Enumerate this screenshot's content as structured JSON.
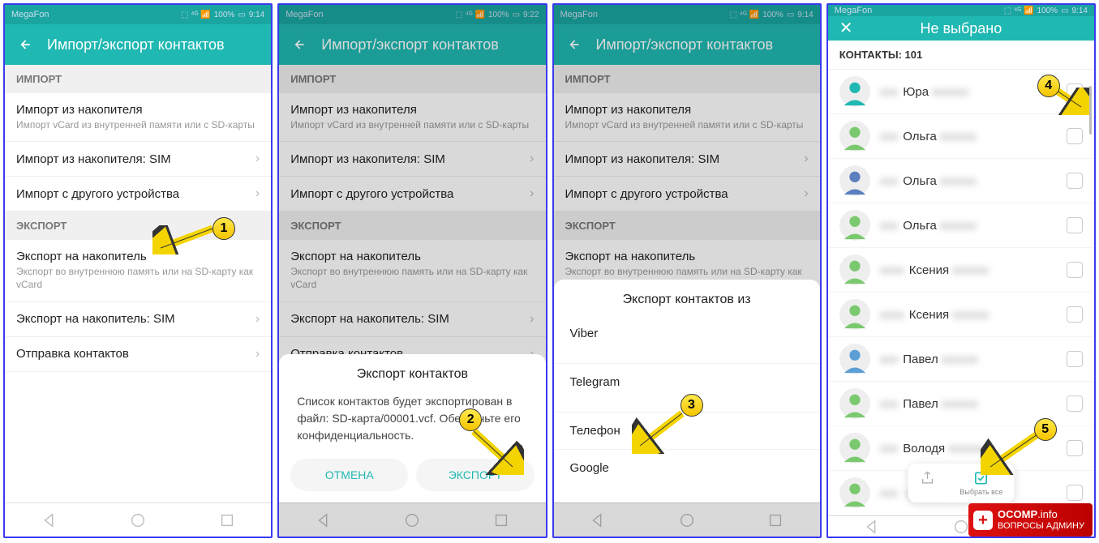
{
  "status": {
    "carrier": "MegaFon",
    "battery": "100%",
    "t1": "9:14",
    "t2": "9:22",
    "signal": "📶"
  },
  "header": {
    "title": "Импорт/экспорт контактов",
    "title4": "Не выбрано"
  },
  "sections": {
    "import": "ИМПОРТ",
    "export": "ЭКСПОРТ"
  },
  "items": {
    "imp1_t": "Импорт из накопителя",
    "imp1_s": "Импорт vCard из внутренней памяти или с SD-карты",
    "imp2_t": "Импорт из накопителя: SIM",
    "imp3_t": "Импорт с другого устройства",
    "exp1_t": "Экспорт на накопитель",
    "exp1_s": "Экспорт во внутреннюю память или на SD-карту как vCard",
    "exp2_t": "Экспорт на накопитель: SIM",
    "exp3_t": "Отправка контактов"
  },
  "dialog1": {
    "title": "Экспорт контактов",
    "body": "Список контактов будет экспортирован в файл: SD-карта/00001.vcf. Обеспечьте его конфиденциальность.",
    "cancel": "ОТМЕНА",
    "export": "ЭКСПОРТ"
  },
  "dialog2": {
    "title": "Экспорт контактов из",
    "opts": [
      "Viber",
      "Telegram",
      "Телефон",
      "Google"
    ]
  },
  "screen4": {
    "header": "КОНТАКТЫ: 101",
    "selectall": "Выбрать все",
    "contacts": [
      {
        "name": "Юра",
        "color": "#20b8b2"
      },
      {
        "name": "Ольга",
        "color": "#7bc96f"
      },
      {
        "name": "Ольга",
        "color": "#5b7fbf"
      },
      {
        "name": "Ольга",
        "color": "#7bc96f"
      },
      {
        "name": "Ксения",
        "color": "#7bc96f",
        "pre": true
      },
      {
        "name": "Ксения",
        "color": "#7bc96f",
        "pre": true
      },
      {
        "name": "Павел",
        "color": "#5b9fd6"
      },
      {
        "name": "Павел",
        "color": "#7bc96f"
      },
      {
        "name": "Володя",
        "color": "#7bc96f"
      },
      {
        "name": "",
        "color": "#7bc96f"
      }
    ]
  },
  "callouts": {
    "1": "1",
    "2": "2",
    "3": "3",
    "4": "4",
    "5": "5"
  },
  "watermark": {
    "brand": "OCOMP",
    "tld": ".info",
    "sub": "ВОПРОСЫ АДМИНУ"
  }
}
